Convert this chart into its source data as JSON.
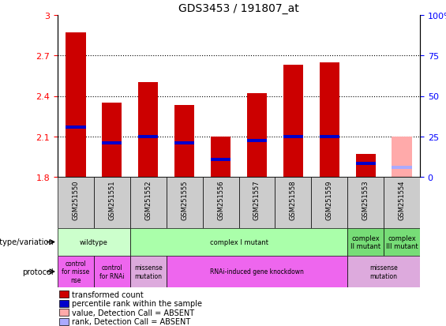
{
  "title": "GDS3453 / 191807_at",
  "samples": [
    "GSM251550",
    "GSM251551",
    "GSM251552",
    "GSM251555",
    "GSM251556",
    "GSM251557",
    "GSM251558",
    "GSM251559",
    "GSM251553",
    "GSM251554"
  ],
  "red_values": [
    2.87,
    2.35,
    2.5,
    2.33,
    2.1,
    2.42,
    2.63,
    2.65,
    1.97,
    2.1
  ],
  "blue_values": [
    2.17,
    2.05,
    2.1,
    2.05,
    1.93,
    2.07,
    2.1,
    2.1,
    1.9,
    1.87
  ],
  "absent_red": [
    false,
    false,
    false,
    false,
    false,
    false,
    false,
    false,
    false,
    true
  ],
  "absent_blue": [
    false,
    false,
    false,
    false,
    false,
    false,
    false,
    false,
    false,
    true
  ],
  "ymin": 1.8,
  "ymax": 3.0,
  "yticks": [
    1.8,
    2.1,
    2.4,
    2.7,
    3.0
  ],
  "ytick_labels": [
    "1.8",
    "2.1",
    "2.4",
    "2.7",
    "3"
  ],
  "right_yticks": [
    0,
    25,
    50,
    75,
    100
  ],
  "right_ytick_labels": [
    "0",
    "25",
    "50",
    "75",
    "100%"
  ],
  "bar_width": 0.55,
  "base_value": 1.8,
  "bar_color_red": "#cc0000",
  "bar_color_blue": "#0000cc",
  "bar_color_absent_red": "#ffaaaa",
  "bar_color_absent_blue": "#aaaaff",
  "sample_bg_color": "#cccccc",
  "wildtype_color": "#ccffcc",
  "complex_I_color": "#aaffaa",
  "complex_II_color": "#77dd77",
  "complex_III_color": "#77dd77",
  "ctrl_missense_color": "#ee66ee",
  "ctrl_rnai_color": "#ee66ee",
  "missense_single_color": "#ddaadd",
  "rnai_color": "#ee66ee",
  "missense_multi_color": "#ddaadd",
  "geno_data": [
    [
      0,
      2,
      "wildtype",
      "#ccffcc"
    ],
    [
      2,
      8,
      "complex I mutant",
      "#aaffaa"
    ],
    [
      8,
      9,
      "complex\nII mutant",
      "#77dd77"
    ],
    [
      9,
      10,
      "complex\nIII mutant",
      "#77dd77"
    ]
  ],
  "proto_data": [
    [
      0,
      1,
      "control\nfor misse\nnse",
      "#ee66ee"
    ],
    [
      1,
      2,
      "control\nfor RNAi",
      "#ee66ee"
    ],
    [
      2,
      3,
      "missense\nmutation",
      "#ddaadd"
    ],
    [
      3,
      8,
      "RNAi-induced gene knockdown",
      "#ee66ee"
    ],
    [
      8,
      10,
      "missense\nmutation",
      "#ddaadd"
    ]
  ],
  "legend_items": [
    [
      "#cc0000",
      "transformed count"
    ],
    [
      "#0000cc",
      "percentile rank within the sample"
    ],
    [
      "#ffaaaa",
      "value, Detection Call = ABSENT"
    ],
    [
      "#aaaaff",
      "rank, Detection Call = ABSENT"
    ]
  ]
}
